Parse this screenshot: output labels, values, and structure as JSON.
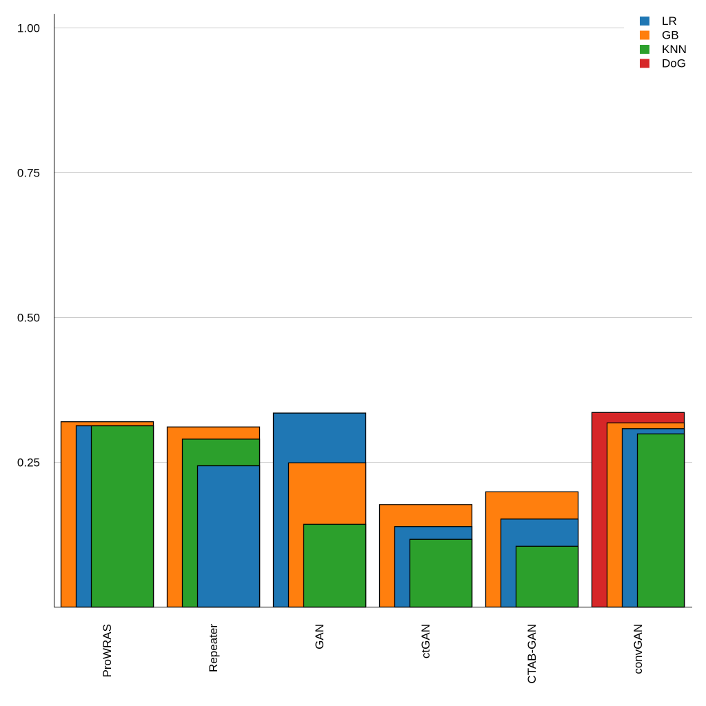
{
  "chart_data": {
    "type": "bar",
    "title": "",
    "xlabel": "",
    "ylabel": "",
    "ylim": [
      0,
      1.0
    ],
    "yticks": [
      "0.25",
      "0.50",
      "0.75",
      "1.00"
    ],
    "ytick_values": [
      0.25,
      0.5,
      0.75,
      1.0
    ],
    "grid": true,
    "legend_position": "top-right",
    "categories": [
      "ProWRAS",
      "Repeater",
      "GAN",
      "ctGAN",
      "CTAB-GAN",
      "convGAN"
    ],
    "series": [
      {
        "name": "LR",
        "color": "#1f77b4",
        "values": [
          0.313,
          0.244,
          0.335,
          0.139,
          0.152,
          0.308
        ]
      },
      {
        "name": "GB",
        "color": "#ff7f0e",
        "values": [
          0.32,
          0.311,
          0.249,
          0.177,
          0.199,
          0.318
        ]
      },
      {
        "name": "KNN",
        "color": "#2ca02c",
        "values": [
          0.313,
          0.29,
          0.143,
          0.117,
          0.105,
          0.299
        ]
      },
      {
        "name": "DoG",
        "color": "#d62728",
        "values": [
          null,
          null,
          null,
          null,
          null,
          0.336
        ]
      }
    ]
  }
}
